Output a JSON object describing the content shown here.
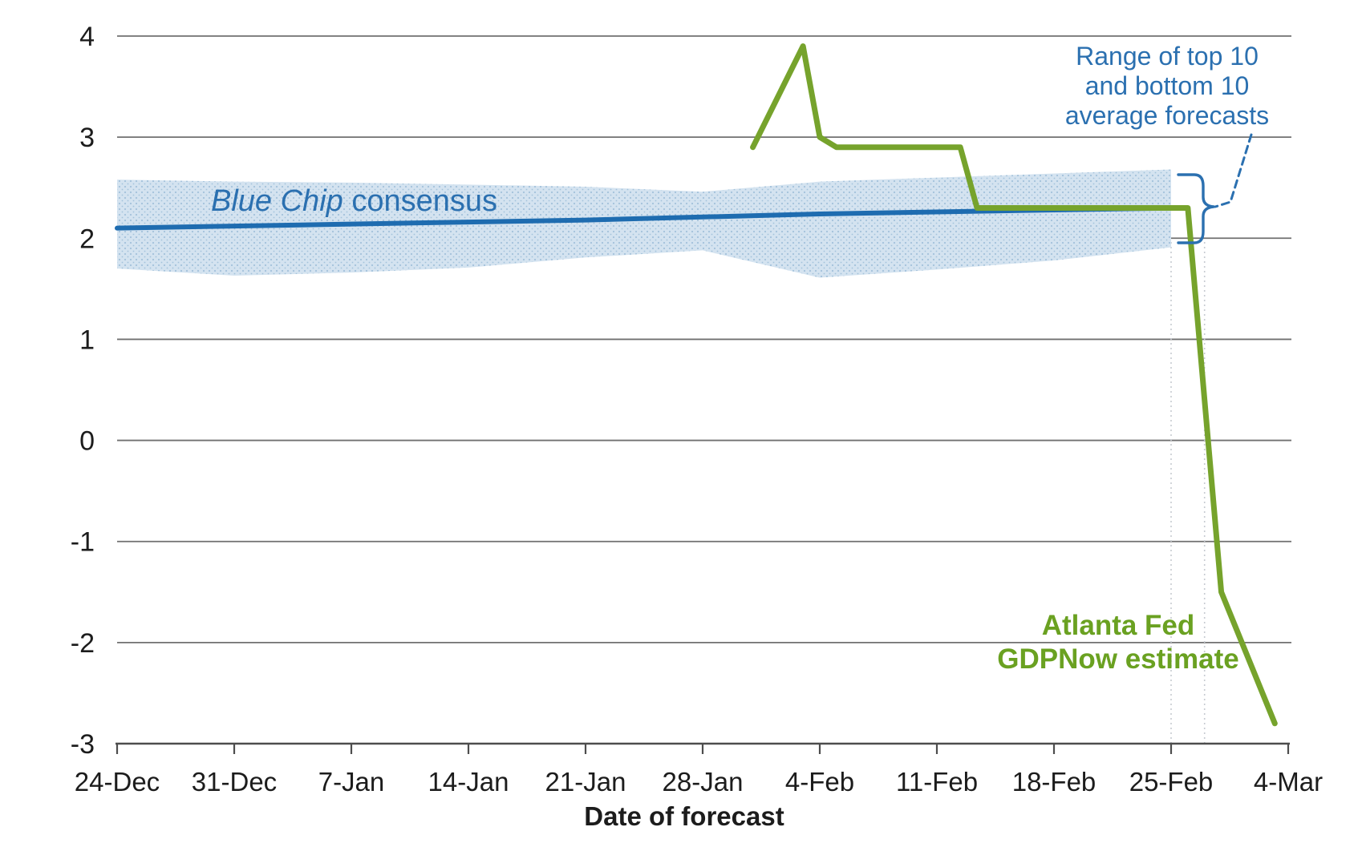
{
  "chart_data": {
    "type": "line",
    "title": "",
    "xlabel": "Date of forecast",
    "ylabel": "",
    "ylim": [
      -3,
      4
    ],
    "grid": "horizontal",
    "legend_position": "none (inline annotations)",
    "y_ticks": [
      {
        "label": "4",
        "value": 4
      },
      {
        "label": "3",
        "value": 3
      },
      {
        "label": "2",
        "value": 2
      },
      {
        "label": "1",
        "value": 1
      },
      {
        "label": "0",
        "value": 0
      },
      {
        "label": "-1",
        "value": -1
      },
      {
        "label": "-2",
        "value": -2
      },
      {
        "label": "-3",
        "value": -3
      }
    ],
    "x_ticks": [
      {
        "label": "24-Dec",
        "day": 0
      },
      {
        "label": "31-Dec",
        "day": 7
      },
      {
        "label": "7-Jan",
        "day": 14
      },
      {
        "label": "14-Jan",
        "day": 21
      },
      {
        "label": "21-Jan",
        "day": 28
      },
      {
        "label": "28-Jan",
        "day": 35
      },
      {
        "label": "4-Feb",
        "day": 42
      },
      {
        "label": "11-Feb",
        "day": 49
      },
      {
        "label": "18-Feb",
        "day": 56
      },
      {
        "label": "25-Feb",
        "day": 63
      },
      {
        "label": "4-Mar",
        "day": 70
      }
    ],
    "series": [
      {
        "name": "Blue Chip consensus",
        "color": "#1e6cb0",
        "width": 6,
        "points": [
          {
            "date": "24-Dec",
            "day": 0,
            "value": 2.1
          },
          {
            "date": "7-Jan",
            "day": 14,
            "value": 2.14
          },
          {
            "date": "21-Jan",
            "day": 28,
            "value": 2.18
          },
          {
            "date": "4-Feb",
            "day": 42,
            "value": 2.24
          },
          {
            "date": "18-Feb",
            "day": 56,
            "value": 2.28
          },
          {
            "date": "26-Feb",
            "day": 63.8,
            "value": 2.3
          }
        ]
      },
      {
        "name": "Atlanta Fed GDPNow estimate",
        "color": "#76a32c",
        "width": 7,
        "points": [
          {
            "date": "31-Jan",
            "day": 38,
            "value": 2.9
          },
          {
            "date": "3-Feb",
            "day": 41,
            "value": 3.9
          },
          {
            "date": "4-Feb",
            "day": 42,
            "value": 3.0
          },
          {
            "date": "5-Feb",
            "day": 43,
            "value": 2.9
          },
          {
            "date": "12-Feb",
            "day": 50.4,
            "value": 2.9
          },
          {
            "date": "14-Feb",
            "day": 51.4,
            "value": 2.3
          },
          {
            "date": "26-Feb",
            "day": 64,
            "value": 2.3
          },
          {
            "date": "28-Feb",
            "day": 66,
            "value": -1.5
          },
          {
            "date": "3-Mar",
            "day": 69.2,
            "value": -2.8
          }
        ]
      }
    ],
    "band": {
      "name": "Range of top 10 and bottom 10 average forecasts",
      "fill": "#d4e3f0",
      "dot_color": "#a3c2db",
      "points": [
        {
          "date": "24-Dec",
          "day": 0,
          "top": 2.58,
          "bottom": 1.7
        },
        {
          "date": "31-Dec",
          "day": 7,
          "top": 2.56,
          "bottom": 1.63
        },
        {
          "date": "7-Jan",
          "day": 14,
          "top": 2.55,
          "bottom": 1.66
        },
        {
          "date": "14-Jan",
          "day": 21,
          "top": 2.53,
          "bottom": 1.71
        },
        {
          "date": "21-Jan",
          "day": 28,
          "top": 2.51,
          "bottom": 1.81
        },
        {
          "date": "28-Jan",
          "day": 35,
          "top": 2.46,
          "bottom": 1.88
        },
        {
          "date": "4-Feb",
          "day": 42,
          "top": 2.56,
          "bottom": 1.61
        },
        {
          "date": "11-Feb",
          "day": 49,
          "top": 2.6,
          "bottom": 1.69
        },
        {
          "date": "18-Feb",
          "day": 56,
          "top": 2.64,
          "bottom": 1.78
        },
        {
          "date": "25-Feb",
          "day": 63,
          "top": 2.68,
          "bottom": 1.91
        }
      ]
    },
    "guide_days": [
      63,
      65
    ],
    "annotations": {
      "blue_chip": {
        "italic": "Blue Chip",
        "rest": " consensus",
        "color": "#2b70b0"
      },
      "range": {
        "lines": [
          "Range of top 10",
          "and bottom 10",
          "average forecasts"
        ],
        "color": "#2b70b0"
      },
      "gdpnow": {
        "lines": [
          "Atlanta Fed",
          "GDPNow estimate"
        ],
        "color": "#6aa121"
      }
    }
  }
}
